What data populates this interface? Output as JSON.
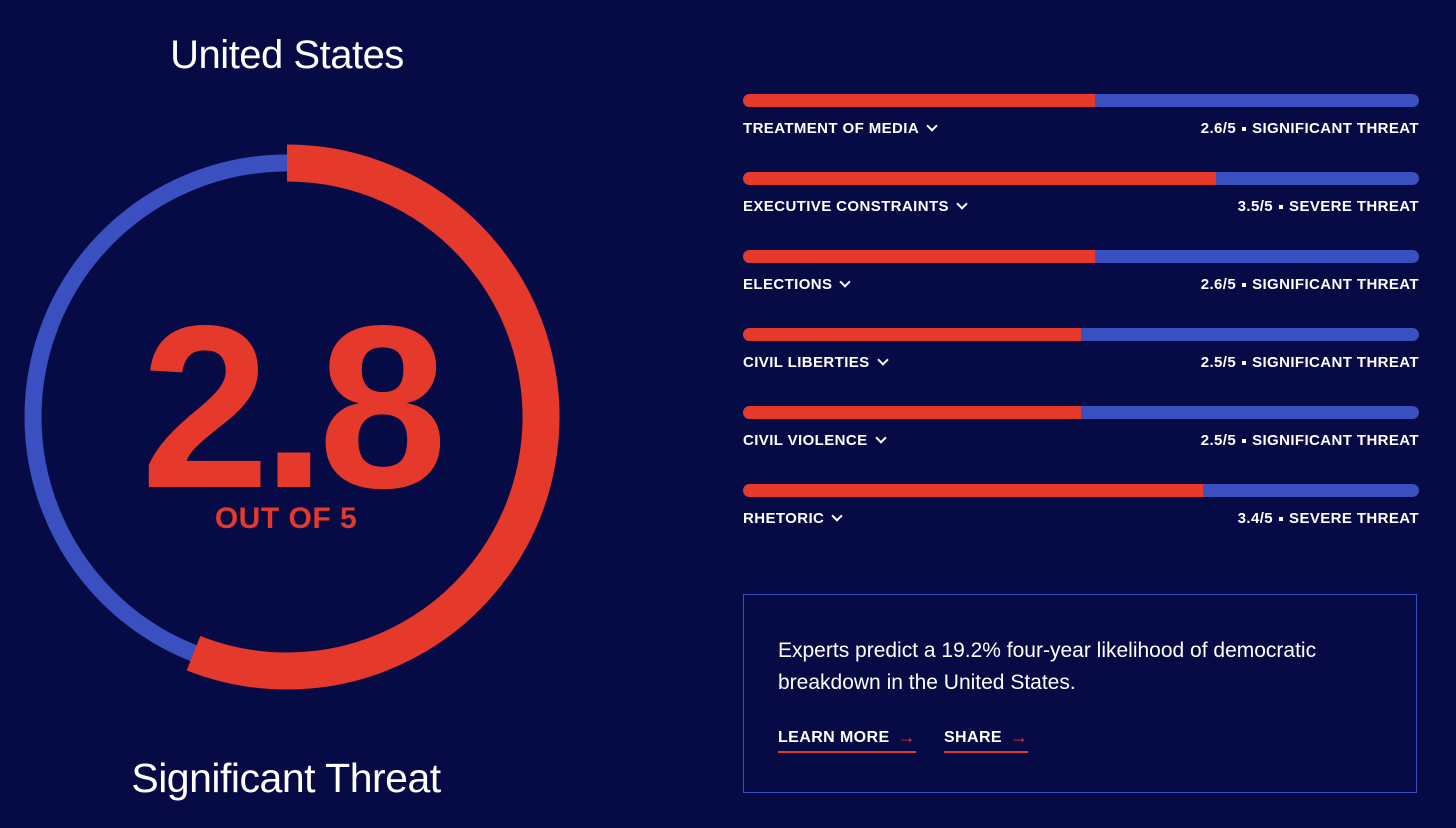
{
  "country": "United States",
  "overall": {
    "score": "2.8",
    "score_value": 2.8,
    "max": 5,
    "out_of": "OUT OF 5",
    "label": "Significant Threat",
    "gauge_fraction": 0.56
  },
  "colors": {
    "background": "#070b45",
    "accent_red": "#e5392b",
    "track_blue": "#3a4fc0",
    "text": "#ffffff"
  },
  "categories": [
    {
      "name": "TREATMENT OF MEDIA",
      "score": "2.6/5",
      "rating": "SIGNIFICANT THREAT",
      "value": 2.6
    },
    {
      "name": "EXECUTIVE CONSTRAINTS",
      "score": "3.5/5",
      "rating": "SEVERE THREAT",
      "value": 3.5
    },
    {
      "name": "ELECTIONS",
      "score": "2.6/5",
      "rating": "SIGNIFICANT THREAT",
      "value": 2.6
    },
    {
      "name": "CIVIL LIBERTIES",
      "score": "2.5/5",
      "rating": "SIGNIFICANT THREAT",
      "value": 2.5
    },
    {
      "name": "CIVIL VIOLENCE",
      "score": "2.5/5",
      "rating": "SIGNIFICANT THREAT",
      "value": 2.5
    },
    {
      "name": "RHETORIC",
      "score": "3.4/5",
      "rating": "SEVERE THREAT",
      "value": 3.4
    }
  ],
  "info": {
    "text": "Experts predict a 19.2% four-year likelihood of democratic breakdown in the United States.",
    "learn_more": "LEARN MORE",
    "share": "SHARE"
  },
  "icons": {
    "dropdown": "chevron-down-icon",
    "link_arrow": "arrow-right-icon"
  }
}
